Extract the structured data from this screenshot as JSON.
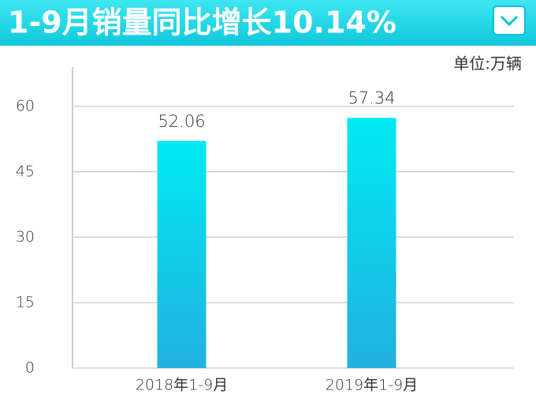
{
  "chart_data": {
    "type": "bar",
    "title": "1-9月销量同比增长10.14%",
    "unit_label": "单位:万辆",
    "categories": [
      "2018年1-9月",
      "2019年1-9月"
    ],
    "values": [
      52.06,
      57.34
    ],
    "ylim": [
      0,
      69
    ],
    "yticks": [
      0,
      15,
      30,
      45,
      60
    ],
    "grid": true
  }
}
